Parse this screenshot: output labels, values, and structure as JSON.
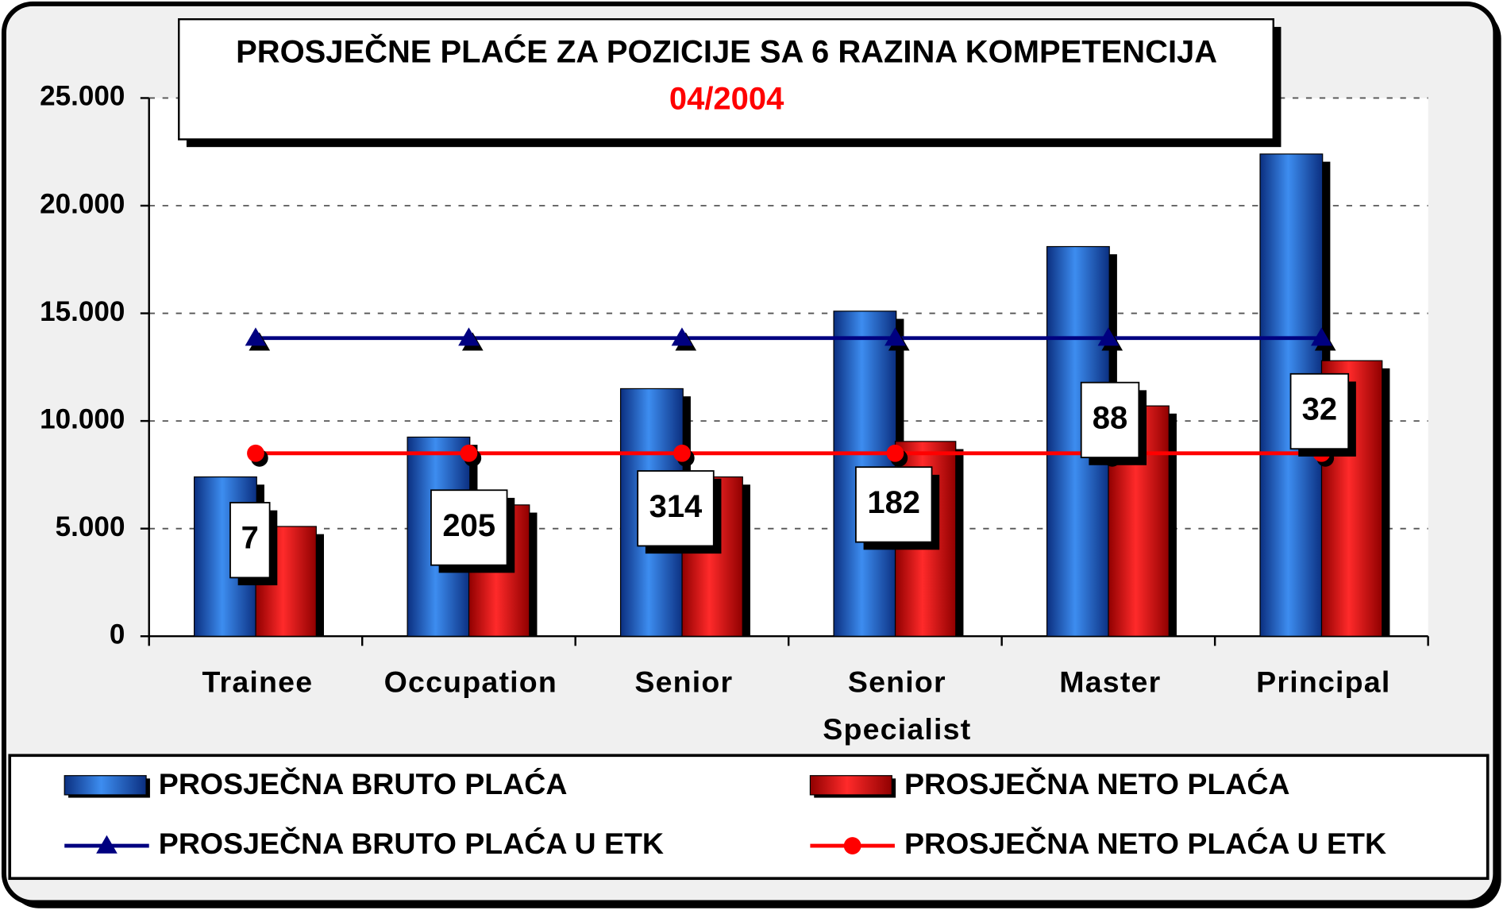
{
  "chart_data": {
    "type": "bar",
    "title": "PROSJEČNE PLAĆE ZA POZICIJE SA 6 RAZINA KOMPETENCIJA",
    "subtitle": "04/2004",
    "categories": [
      "Trainee",
      "Occupation",
      "Senior",
      "Senior Specialist",
      "Master",
      "Principal"
    ],
    "series": [
      {
        "name": "PROSJEČNA BRUTO PLAĆA",
        "type": "bar",
        "color": "#1f5fc8",
        "values": [
          7400,
          9250,
          11500,
          15100,
          18100,
          22400
        ]
      },
      {
        "name": "PROSJEČNA NETO PLAĆA",
        "type": "bar",
        "color": "#ff0000",
        "values": [
          5100,
          6100,
          7400,
          9050,
          10700,
          12800
        ]
      },
      {
        "name": "PROSJEČNA BRUTO PLAĆA U ETK",
        "type": "line",
        "marker": "triangle",
        "color": "#000080",
        "values": [
          13850,
          13850,
          13850,
          13850,
          13850,
          13850
        ]
      },
      {
        "name": "PROSJEČNA NETO PLAĆA U ETK",
        "type": "line",
        "marker": "circle",
        "color": "#ff0000",
        "values": [
          8500,
          8500,
          8500,
          8500,
          8500,
          8500
        ]
      }
    ],
    "annotations": [
      "7",
      "205",
      "314",
      "182",
      "88",
      "32"
    ],
    "ylim": [
      0,
      25000
    ],
    "yticks": [
      {
        "value": 0,
        "label": "0"
      },
      {
        "value": 5000,
        "label": "5.000"
      },
      {
        "value": 10000,
        "label": "10.000"
      },
      {
        "value": 15000,
        "label": "15.000"
      },
      {
        "value": 20000,
        "label": "20.000"
      },
      {
        "value": 25000,
        "label": "25.000"
      }
    ],
    "grid": true
  }
}
